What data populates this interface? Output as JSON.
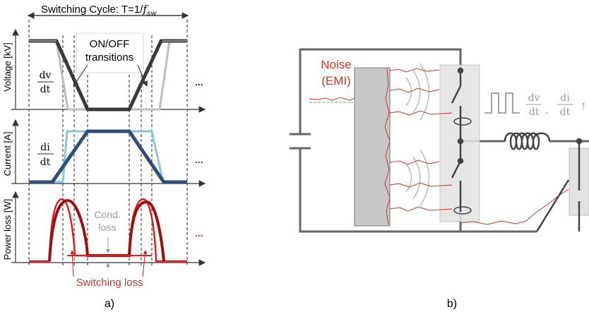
{
  "panel_a": {
    "header": "Switching Cycle: T=1/",
    "header_f": "f",
    "header_sub": "sw",
    "transitions_line1": "ON/OFF",
    "transitions_line2": "transitions",
    "ylabel_voltage": "Voltage [kV]",
    "ylabel_current": "Current [A]",
    "ylabel_power": "Power loss [W]",
    "dv_num": "dv",
    "dv_den": "dt",
    "di_num": "di",
    "di_den": "dt",
    "cond_line1": "Cond.",
    "cond_line2": "loss",
    "switching_loss": "Switching loss",
    "ellipsis": "...",
    "caption": "a)"
  },
  "panel_b": {
    "noise_line1": "Noise",
    "noise_line2": "(EMI)",
    "dv_num": "dv",
    "dv_den": "dt",
    "di_num": "di",
    "di_den": "dt",
    "comma": ",",
    "arrow": "↑",
    "caption": "b)"
  },
  "colors": {
    "axis": "#333333",
    "voltage_dark": "#3a3a3a",
    "voltage_light": "#bdbdbd",
    "current_dark": "#2e4f7a",
    "current_light": "#8ec3dc",
    "power_dark": "#9b0f0f",
    "power_mid": "#e02020",
    "noise": "#c0392b",
    "grey_block": "#c8c8c8"
  }
}
